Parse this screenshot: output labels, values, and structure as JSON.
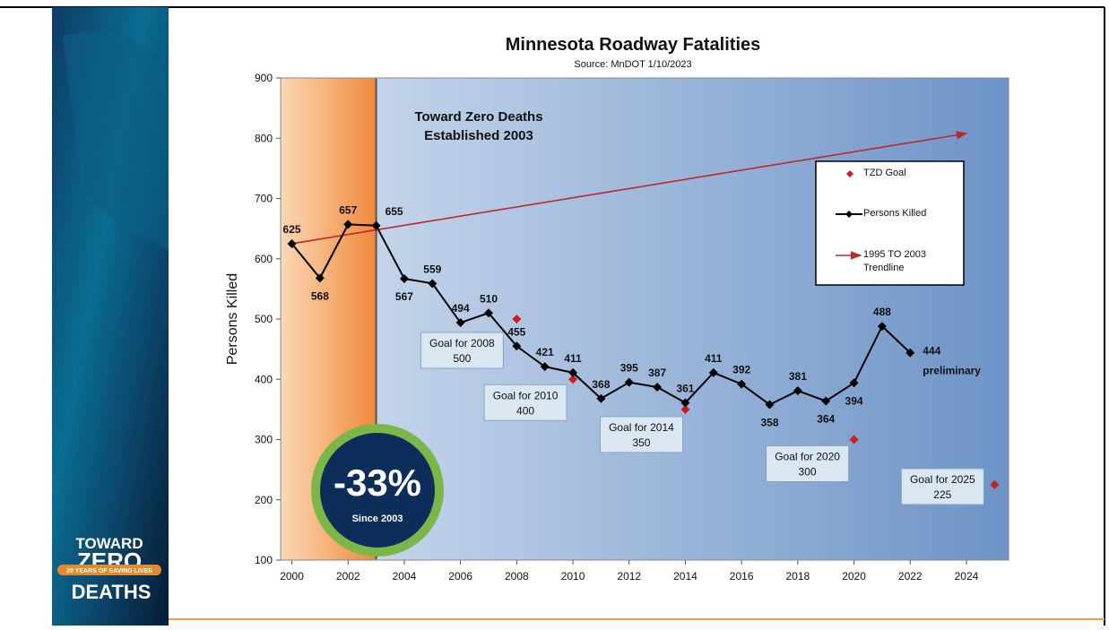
{
  "slide": {
    "logo": [
      "TOWARD",
      "ZERO",
      "20 YEARS OF SAVING LIVES",
      "DEATHS"
    ]
  },
  "chart_data": {
    "type": "line",
    "title": "Minnesota Roadway Fatalities",
    "subtitle": "Source:  MnDOT 1/10/2023",
    "y_label": "Persons Killed",
    "xlim": [
      1999.6,
      2025.5
    ],
    "xticks": [
      2000,
      2002,
      2004,
      2006,
      2008,
      2010,
      2012,
      2014,
      2016,
      2018,
      2020,
      2022,
      2024
    ],
    "ylim": [
      100,
      900
    ],
    "yticks": [
      100,
      200,
      300,
      400,
      500,
      600,
      700,
      800,
      900
    ],
    "highlight_until": 2003,
    "legend": "upper right",
    "annotation_lines": [
      "Toward Zero Deaths",
      "Established 2003"
    ],
    "preliminary_note": "preliminary",
    "badge": {
      "label": "-33%",
      "note": "Since 2003"
    },
    "series": [
      {
        "name": "Persons Killed",
        "kind": "line",
        "color": "#000000",
        "x": [
          2000,
          2001,
          2002,
          2003,
          2004,
          2005,
          2006,
          2007,
          2008,
          2009,
          2010,
          2011,
          2012,
          2013,
          2014,
          2015,
          2016,
          2017,
          2018,
          2019,
          2020,
          2021,
          2022
        ],
        "values": [
          625,
          568,
          657,
          655,
          567,
          559,
          494,
          510,
          455,
          421,
          411,
          368,
          395,
          387,
          361,
          411,
          392,
          358,
          381,
          364,
          394,
          488,
          444
        ]
      },
      {
        "name": "TZD Goal",
        "kind": "points",
        "color": "#d01c1c",
        "x": [
          2008,
          2010,
          2014,
          2020,
          2025
        ],
        "values": [
          500,
          400,
          350,
          300,
          225
        ],
        "goal_labels": [
          "Goal for 2008",
          "Goal for 2010",
          "Goal for 2014",
          "Goal for 2020",
          "Goal for 2025"
        ]
      },
      {
        "name": "1995 TO 2003 Trendline",
        "kind": "arrow",
        "color": "#c0272d",
        "x": [
          2000,
          2024
        ],
        "values": [
          625,
          808
        ]
      }
    ]
  }
}
